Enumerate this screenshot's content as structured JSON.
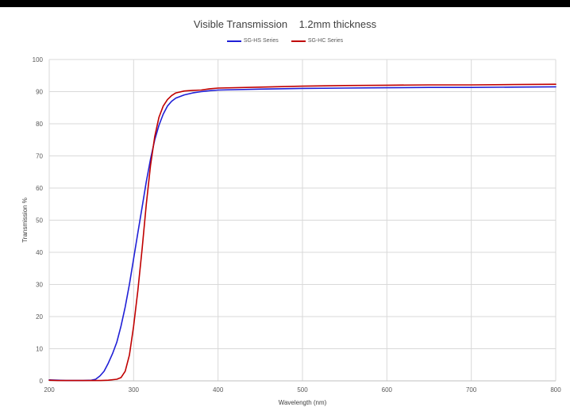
{
  "chart_data": {
    "type": "line",
    "title": "Visible Transmission    1.2mm thickness",
    "xlabel": "Wavelength (nm)",
    "ylabel": "Transmission %",
    "xlim": [
      200,
      800
    ],
    "ylim": [
      0,
      100
    ],
    "x_ticks": [
      200,
      300,
      400,
      500,
      600,
      700,
      800
    ],
    "y_ticks": [
      0,
      10,
      20,
      30,
      40,
      50,
      60,
      70,
      80,
      90,
      100
    ],
    "grid": true,
    "legend_position": "top-center",
    "series": [
      {
        "name": "SG-HS Series",
        "color": "#1f1fd6",
        "points": [
          [
            200,
            0.3
          ],
          [
            210,
            0.2
          ],
          [
            220,
            0.1
          ],
          [
            230,
            0.1
          ],
          [
            240,
            0.1
          ],
          [
            250,
            0.2
          ],
          [
            255,
            0.5
          ],
          [
            260,
            1.5
          ],
          [
            265,
            3
          ],
          [
            270,
            5.5
          ],
          [
            275,
            8.5
          ],
          [
            280,
            12
          ],
          [
            285,
            17
          ],
          [
            290,
            23
          ],
          [
            295,
            30
          ],
          [
            300,
            38
          ],
          [
            305,
            46
          ],
          [
            310,
            54
          ],
          [
            315,
            62
          ],
          [
            320,
            69
          ],
          [
            325,
            75
          ],
          [
            330,
            79.5
          ],
          [
            335,
            83
          ],
          [
            340,
            85.5
          ],
          [
            345,
            87
          ],
          [
            350,
            88
          ],
          [
            360,
            89
          ],
          [
            370,
            89.6
          ],
          [
            380,
            90
          ],
          [
            390,
            90.3
          ],
          [
            400,
            90.5
          ],
          [
            450,
            90.8
          ],
          [
            500,
            91
          ],
          [
            550,
            91.1
          ],
          [
            600,
            91.2
          ],
          [
            650,
            91.3
          ],
          [
            700,
            91.3
          ],
          [
            750,
            91.4
          ],
          [
            800,
            91.5
          ]
        ]
      },
      {
        "name": "SG-HC Series",
        "color": "#c00000",
        "points": [
          [
            200,
            0.2
          ],
          [
            210,
            0.1
          ],
          [
            220,
            0.1
          ],
          [
            230,
            0.1
          ],
          [
            240,
            0.1
          ],
          [
            250,
            0.1
          ],
          [
            260,
            0.1
          ],
          [
            270,
            0.2
          ],
          [
            280,
            0.5
          ],
          [
            285,
            1
          ],
          [
            290,
            3
          ],
          [
            295,
            8
          ],
          [
            300,
            17
          ],
          [
            305,
            28
          ],
          [
            310,
            41
          ],
          [
            315,
            55
          ],
          [
            320,
            67
          ],
          [
            325,
            76
          ],
          [
            330,
            82
          ],
          [
            335,
            85.5
          ],
          [
            340,
            87.5
          ],
          [
            345,
            88.8
          ],
          [
            350,
            89.6
          ],
          [
            360,
            90.2
          ],
          [
            370,
            90.4
          ],
          [
            380,
            90.5
          ],
          [
            390,
            90.9
          ],
          [
            400,
            91.1
          ],
          [
            450,
            91.4
          ],
          [
            500,
            91.7
          ],
          [
            550,
            91.9
          ],
          [
            600,
            92
          ],
          [
            650,
            92.1
          ],
          [
            700,
            92.1
          ],
          [
            750,
            92.2
          ],
          [
            800,
            92.3
          ]
        ]
      }
    ]
  }
}
